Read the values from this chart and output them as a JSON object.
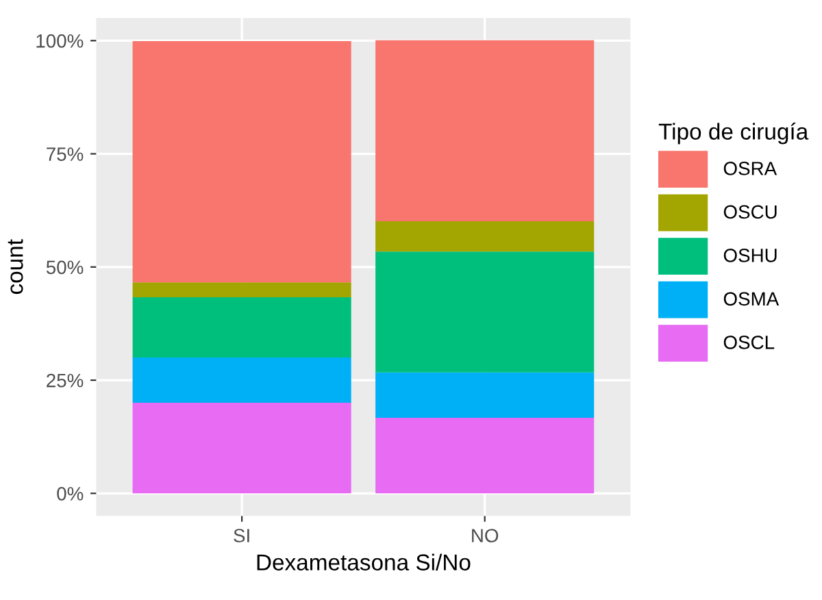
{
  "chart_data": {
    "type": "bar",
    "stacked": true,
    "xlabel": "Dexametasona Si/No",
    "ylabel": "count",
    "legend_title": "Tipo de cirugía",
    "categories": [
      "SI",
      "NO"
    ],
    "series": [
      {
        "name": "OSCL",
        "color": "#e76bf3",
        "values": [
          20.0,
          16.7
        ]
      },
      {
        "name": "OSMA",
        "color": "#00b0f6",
        "values": [
          10.0,
          10.0
        ]
      },
      {
        "name": "OSHU",
        "color": "#00bf7d",
        "values": [
          13.3,
          26.7
        ]
      },
      {
        "name": "OSCU",
        "color": "#a3a500",
        "values": [
          3.3,
          6.7
        ]
      },
      {
        "name": "OSRA",
        "color": "#f8766d",
        "values": [
          53.3,
          40.0
        ]
      }
    ],
    "ylim": [
      -5,
      105
    ],
    "yticks": [
      {
        "value": 0,
        "label": "0%"
      },
      {
        "value": 25,
        "label": "25%"
      },
      {
        "value": 50,
        "label": "50%"
      },
      {
        "value": 75,
        "label": "75%"
      },
      {
        "value": 100,
        "label": "100%"
      }
    ],
    "grid": true,
    "legend": "right"
  }
}
